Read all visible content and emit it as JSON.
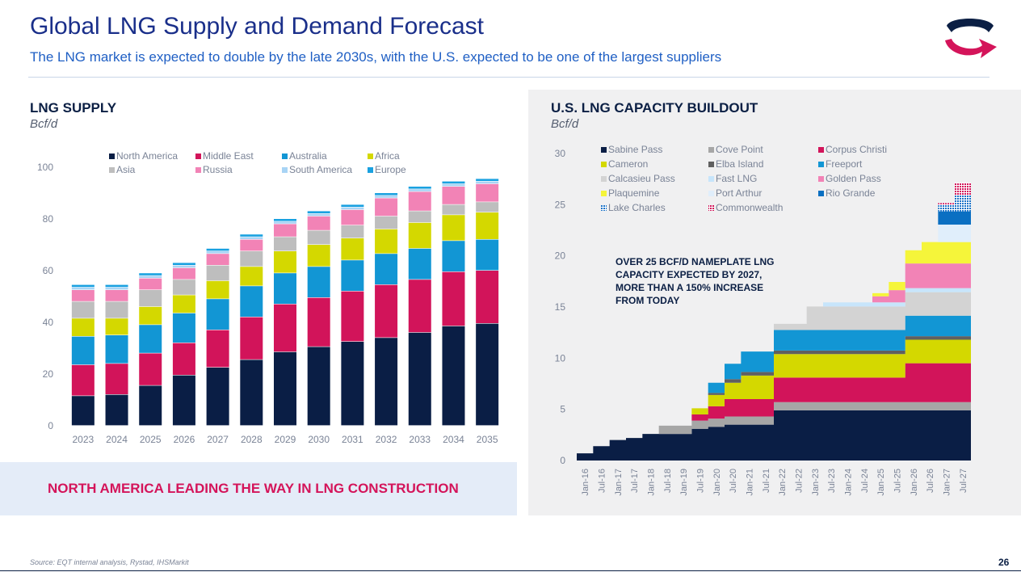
{
  "header": {
    "title": "Global LNG Supply and Demand Forecast",
    "subtitle": "The LNG market is expected to double by the late 2030s, with the U.S. expected to be one of the largest suppliers"
  },
  "logo": {
    "icon": "brand-logo-icon",
    "colors": [
      "#0b1f44",
      "#d4145a"
    ]
  },
  "callout": {
    "text": "NORTH AMERICA LEADING THE WAY IN LNG CONSTRUCTION"
  },
  "annotation": {
    "text": "OVER 25 BCF/D NAMEPLATE LNG CAPACITY EXPECTED BY 2027, MORE THAN A 150% INCREASE FROM TODAY"
  },
  "footer": {
    "source": "Source: EQT internal analysis, Rystad, IHSMarkit",
    "page_number": "26"
  },
  "chart_data": [
    {
      "type": "bar",
      "stacked": true,
      "title": "LNG SUPPLY",
      "ylabel": "Bcf/d",
      "ylim": [
        0,
        100
      ],
      "yticks": [
        0,
        20,
        40,
        60,
        80,
        100
      ],
      "grid": false,
      "legend_position": "top",
      "categories": [
        "2023",
        "2024",
        "2025",
        "2026",
        "2027",
        "2028",
        "2029",
        "2030",
        "2031",
        "2032",
        "2033",
        "2034",
        "2035"
      ],
      "series": [
        {
          "name": "North America",
          "color": "#0a1e45",
          "values": [
            11.5,
            12,
            15.5,
            19.5,
            22.5,
            25.5,
            28.5,
            30.5,
            32.5,
            34,
            36,
            38.5,
            39.5
          ]
        },
        {
          "name": "Middle East",
          "color": "#d2145a",
          "values": [
            12,
            12,
            12.5,
            12.5,
            14.5,
            16.5,
            18.5,
            19,
            19.5,
            20.5,
            20.5,
            21,
            20.5
          ]
        },
        {
          "name": "Australia",
          "color": "#1296d4",
          "values": [
            11,
            11,
            11,
            11.5,
            12,
            12,
            12,
            12,
            12,
            12,
            12,
            12,
            12
          ]
        },
        {
          "name": "Africa",
          "color": "#d4d800",
          "values": [
            7,
            6.5,
            7,
            7,
            7,
            7.5,
            8.5,
            8.5,
            8.5,
            9.5,
            10,
            10,
            10.5
          ]
        },
        {
          "name": "Asia",
          "color": "#bebebe",
          "values": [
            6.5,
            6.5,
            6.5,
            6,
            6,
            6,
            5.5,
            5.5,
            5,
            5,
            4.5,
            4,
            4
          ]
        },
        {
          "name": "Russia",
          "color": "#f283b6",
          "values": [
            4.5,
            4.5,
            4.5,
            4.5,
            4.5,
            4.5,
            5,
            5.5,
            6,
            7,
            7.5,
            7,
            7
          ]
        },
        {
          "name": "South America",
          "color": "#a8d4f5",
          "values": [
            1,
            1,
            1,
            1,
            1,
            1,
            1,
            1,
            1,
            1,
            1,
            1,
            1
          ]
        },
        {
          "name": "Europe",
          "color": "#1aa1e0",
          "values": [
            1,
            1,
            1,
            1,
            1,
            1,
            1,
            1,
            1,
            1,
            1,
            1,
            1
          ]
        }
      ]
    },
    {
      "type": "area",
      "stacked": true,
      "step": true,
      "title": "U.S. LNG CAPACITY BUILDOUT",
      "ylabel": "Bcf/d",
      "ylim": [
        0,
        30
      ],
      "yticks": [
        0,
        5,
        10,
        15,
        20,
        25,
        30
      ],
      "grid": false,
      "legend_position": "top",
      "x": [
        "Jan-16",
        "Jul-16",
        "Jan-17",
        "Jul-17",
        "Jan-18",
        "Jul-18",
        "Jan-19",
        "Jul-19",
        "Jan-20",
        "Jul-20",
        "Jan-21",
        "Jul-21",
        "Jan-22",
        "Jul-22",
        "Jan-23",
        "Jul-23",
        "Jan-24",
        "Jul-24",
        "Jan-25",
        "Jul-25",
        "Jan-26",
        "Jul-26",
        "Jan-27",
        "Jul-27"
      ],
      "series": [
        {
          "name": "Sabine Pass",
          "color": "#0a1e45",
          "values": [
            0.7,
            1.4,
            2.0,
            2.2,
            2.6,
            2.6,
            2.6,
            3.1,
            3.3,
            3.5,
            3.5,
            3.5,
            4.9,
            4.9,
            4.9,
            4.9,
            4.9,
            4.9,
            4.9,
            4.9,
            4.9,
            4.9,
            4.9,
            4.9
          ]
        },
        {
          "name": "Cove Point",
          "color": "#a6a6a6",
          "values": [
            0,
            0,
            0,
            0,
            0,
            0.8,
            0.8,
            0.8,
            0.8,
            0.8,
            0.8,
            0.8,
            0.8,
            0.8,
            0.8,
            0.8,
            0.8,
            0.8,
            0.8,
            0.8,
            0.8,
            0.8,
            0.8,
            0.8
          ]
        },
        {
          "name": "Corpus Christi",
          "color": "#d2145a",
          "values": [
            0,
            0,
            0,
            0,
            0,
            0,
            0,
            0.6,
            1.2,
            1.7,
            1.7,
            1.7,
            2.4,
            2.4,
            2.4,
            2.4,
            2.4,
            2.4,
            2.4,
            2.4,
            3.8,
            3.8,
            3.8,
            3.8
          ]
        },
        {
          "name": "Cameron",
          "color": "#d4d800",
          "values": [
            0,
            0,
            0,
            0,
            0,
            0,
            0,
            0.6,
            1.1,
            1.6,
            2.3,
            2.3,
            2.3,
            2.3,
            2.3,
            2.3,
            2.3,
            2.3,
            2.3,
            2.3,
            2.3,
            2.3,
            2.3,
            2.3
          ]
        },
        {
          "name": "Elba Island",
          "color": "#606060",
          "values": [
            0,
            0,
            0,
            0,
            0,
            0,
            0,
            0,
            0.2,
            0.35,
            0.35,
            0.35,
            0.35,
            0.35,
            0.35,
            0.35,
            0.35,
            0.35,
            0.35,
            0.35,
            0.35,
            0.35,
            0.35,
            0.35
          ]
        },
        {
          "name": "Freeport",
          "color": "#1296d4",
          "values": [
            0,
            0,
            0,
            0,
            0,
            0,
            0,
            0,
            1.0,
            1.5,
            2.0,
            2.0,
            2.0,
            2.0,
            2.0,
            2.0,
            2.0,
            2.0,
            2.0,
            2.0,
            2.0,
            2.0,
            2.0,
            2.0
          ]
        },
        {
          "name": "Calcasieu Pass",
          "color": "#d3d3d3",
          "values": [
            0,
            0,
            0,
            0,
            0,
            0,
            0,
            0,
            0,
            0,
            0,
            0,
            0.6,
            0.6,
            2.3,
            2.3,
            2.3,
            2.3,
            2.3,
            2.3,
            2.3,
            2.3,
            2.3,
            2.3
          ]
        },
        {
          "name": "Fast LNG",
          "color": "#c7e5fb",
          "values": [
            0,
            0,
            0,
            0,
            0,
            0,
            0,
            0,
            0,
            0,
            0,
            0,
            0,
            0,
            0,
            0.4,
            0.4,
            0.4,
            0.4,
            0.4,
            0.4,
            0.4,
            0.4,
            0.4
          ]
        },
        {
          "name": "Golden Pass",
          "color": "#f283b6",
          "values": [
            0,
            0,
            0,
            0,
            0,
            0,
            0,
            0,
            0,
            0,
            0,
            0,
            0,
            0,
            0,
            0,
            0,
            0,
            0.6,
            1.2,
            2.4,
            2.4,
            2.4,
            2.4
          ]
        },
        {
          "name": "Plaquemine",
          "color": "#f5f53a",
          "values": [
            0,
            0,
            0,
            0,
            0,
            0,
            0,
            0,
            0,
            0,
            0,
            0,
            0,
            0,
            0,
            0,
            0,
            0,
            0.3,
            0.8,
            1.3,
            2.1,
            2.1,
            2.1
          ]
        },
        {
          "name": "Port Arthur",
          "color": "#e0eefb",
          "values": [
            0,
            0,
            0,
            0,
            0,
            0,
            0,
            0,
            0,
            0,
            0,
            0,
            0,
            0,
            0,
            0,
            0,
            0,
            0,
            0,
            0,
            0,
            1.7,
            1.7
          ]
        },
        {
          "name": "Rio Grande",
          "color": "#0a6fc2",
          "values": [
            0,
            0,
            0,
            0,
            0,
            0,
            0,
            0,
            0,
            0,
            0,
            0,
            0,
            0,
            0,
            0,
            0,
            0,
            0,
            0,
            0,
            0,
            1.3,
            1.3
          ]
        },
        {
          "name": "Lake Charles",
          "color": "#1a72c8",
          "pattern": "dots",
          "values": [
            0,
            0,
            0,
            0,
            0,
            0,
            0,
            0,
            0,
            0,
            0,
            0,
            0,
            0,
            0,
            0,
            0,
            0,
            0,
            0,
            0,
            0,
            0.6,
            1.6
          ]
        },
        {
          "name": "Commonwealth",
          "color": "#d2145a",
          "pattern": "dots",
          "values": [
            0,
            0,
            0,
            0,
            0,
            0,
            0,
            0,
            0,
            0,
            0,
            0,
            0,
            0,
            0,
            0,
            0,
            0,
            0,
            0,
            0,
            0,
            0.2,
            1.2
          ]
        }
      ],
      "legend_order": [
        "Sabine Pass",
        "Cameron",
        "Calcasieu Pass",
        "Plaquemine",
        "Lake Charles",
        "Cove Point",
        "Elba Island",
        "Fast LNG",
        "Port Arthur",
        "Commonwealth",
        "Corpus Christi",
        "Freeport",
        "Golden Pass",
        "Rio Grande"
      ]
    }
  ]
}
